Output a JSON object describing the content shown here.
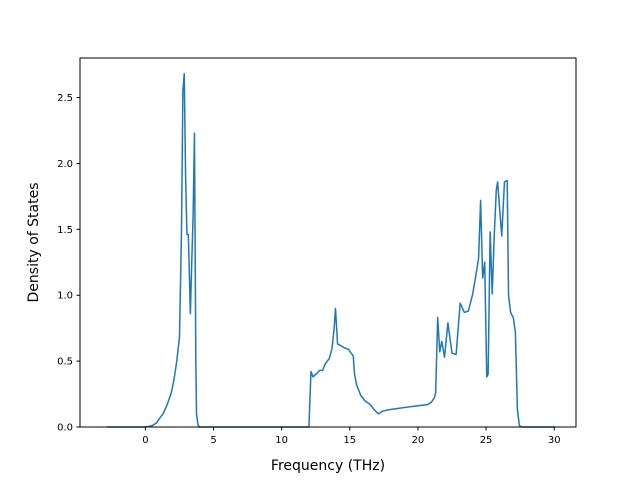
{
  "chart_data": {
    "type": "line",
    "title": "",
    "xlabel": "Frequency (THz)",
    "ylabel": "Density of States",
    "xlim": [
      -4.8,
      31.6
    ],
    "ylim": [
      0.0,
      2.8
    ],
    "xticks": [
      0,
      5,
      10,
      15,
      20,
      25,
      30
    ],
    "yticks": [
      0.0,
      0.5,
      1.0,
      1.5,
      2.0,
      2.5
    ],
    "xtick_labels": [
      "0",
      "5",
      "10",
      "15",
      "20",
      "25",
      "30"
    ],
    "ytick_labels": [
      "0.0",
      "0.5",
      "1.0",
      "1.5",
      "2.0",
      "2.5"
    ],
    "grid": false,
    "series": [
      {
        "color": "#1f77b4",
        "x": [
          -2.8,
          -1.5,
          0.0,
          0.5,
          0.8,
          1.0,
          1.3,
          1.6,
          1.9,
          2.1,
          2.3,
          2.5,
          2.65,
          2.75,
          2.85,
          2.95,
          3.05,
          3.15,
          3.3,
          3.4,
          3.5,
          3.6,
          3.7,
          3.75,
          3.85,
          3.95,
          4.1,
          4.3,
          5.0,
          7.0,
          10.0,
          12.0,
          12.15,
          12.3,
          12.5,
          12.8,
          13.0,
          13.2,
          13.5,
          13.7,
          13.85,
          13.95,
          14.1,
          14.3,
          14.6,
          14.9,
          15.1,
          15.25,
          15.35,
          15.5,
          15.8,
          16.1,
          16.5,
          16.8,
          17.1,
          17.4,
          17.8,
          18.5,
          19.5,
          20.3,
          20.7,
          21.0,
          21.2,
          21.3,
          21.45,
          21.6,
          21.75,
          21.95,
          22.2,
          22.5,
          22.8,
          23.1,
          23.4,
          23.7,
          24.0,
          24.25,
          24.45,
          24.6,
          24.75,
          24.9,
          25.05,
          25.15,
          25.3,
          25.45,
          25.6,
          25.75,
          25.85,
          26.0,
          26.15,
          26.35,
          26.55,
          26.65,
          26.8,
          27.0,
          27.15,
          27.3,
          27.45,
          27.6,
          28.0,
          29.0,
          30.0
        ],
        "y": [
          0.0,
          0.0,
          0.0,
          0.01,
          0.03,
          0.06,
          0.1,
          0.17,
          0.26,
          0.36,
          0.5,
          0.68,
          1.5,
          2.55,
          2.68,
          1.9,
          1.46,
          1.46,
          0.86,
          1.25,
          1.6,
          2.23,
          0.5,
          0.1,
          0.02,
          0.0,
          0.0,
          0.0,
          0.0,
          0.0,
          0.0,
          0.0,
          0.42,
          0.38,
          0.4,
          0.43,
          0.43,
          0.48,
          0.52,
          0.6,
          0.75,
          0.9,
          0.63,
          0.62,
          0.6,
          0.59,
          0.56,
          0.54,
          0.4,
          0.32,
          0.24,
          0.2,
          0.17,
          0.13,
          0.1,
          0.12,
          0.13,
          0.14,
          0.155,
          0.165,
          0.17,
          0.19,
          0.22,
          0.26,
          0.83,
          0.57,
          0.65,
          0.53,
          0.79,
          0.56,
          0.55,
          0.94,
          0.87,
          0.88,
          1.0,
          1.15,
          1.28,
          1.72,
          1.13,
          1.25,
          0.38,
          0.4,
          1.48,
          1.01,
          1.45,
          1.8,
          1.86,
          1.65,
          1.45,
          1.86,
          1.87,
          1.0,
          0.87,
          0.83,
          0.72,
          0.13,
          0.01,
          0.0,
          0.0,
          0.0,
          0.0
        ]
      }
    ]
  }
}
